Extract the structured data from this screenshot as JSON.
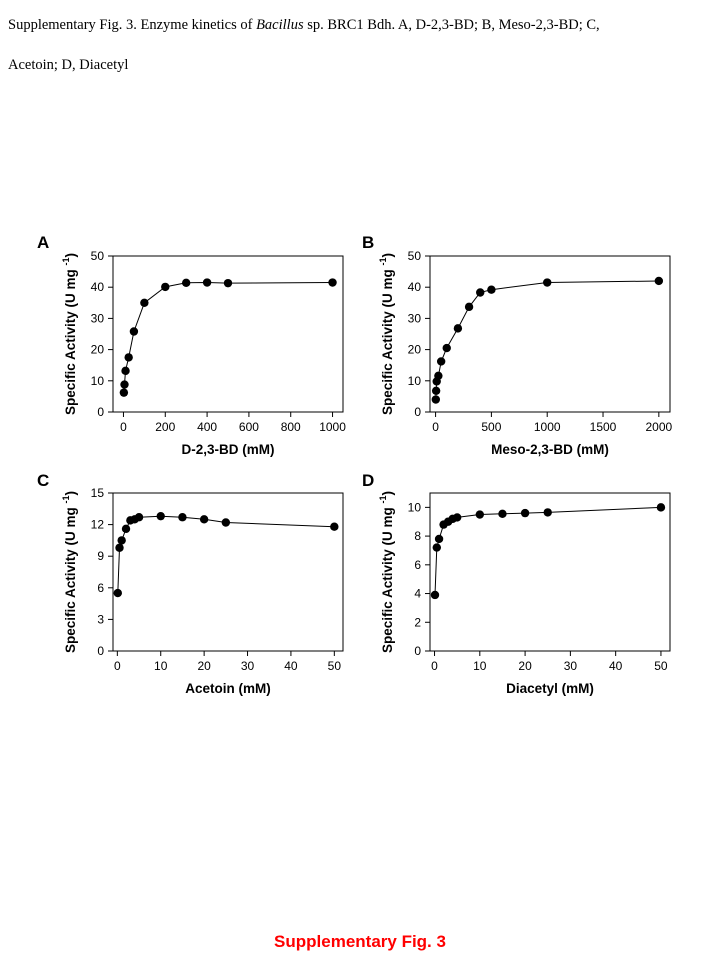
{
  "caption": {
    "line1_prefix": "Supplementary Fig. 3. Enzyme kinetics of ",
    "line1_italic": "Bacillus",
    "line1_suffix": " sp. BRC1 Bdh. A, D-2,3-BD; B, Meso-2,3-BD; C,",
    "line2": "Acetoin; D, Diacetyl"
  },
  "footer": {
    "title": "Supplementary Fig. 3",
    "color": "#ff0000"
  },
  "chart_data": [
    {
      "panel": "A",
      "type": "line",
      "xlabel": "D-2,3-BD (mM)",
      "ylabel": "Specific Activity (U mg-1)",
      "xlim": [
        -50,
        1050
      ],
      "ylim": [
        0,
        50
      ],
      "xticks": [
        0,
        200,
        400,
        600,
        800,
        1000
      ],
      "yticks": [
        0,
        10,
        20,
        30,
        40,
        50
      ],
      "series": [
        {
          "x": [
            2,
            5,
            10,
            25,
            50,
            100,
            200,
            300,
            400,
            500,
            1000
          ],
          "y": [
            6.2,
            8.8,
            13.2,
            17.5,
            25.8,
            35.0,
            40.1,
            41.4,
            41.5,
            41.3,
            41.5
          ]
        }
      ]
    },
    {
      "panel": "B",
      "type": "line",
      "xlabel": "Meso-2,3-BD (mM)",
      "ylabel": "Specific Activity (U mg-1)",
      "xlim": [
        -50,
        2100
      ],
      "ylim": [
        0,
        50
      ],
      "xticks": [
        0,
        500,
        1000,
        1500,
        2000
      ],
      "yticks": [
        0,
        10,
        20,
        30,
        40,
        50
      ],
      "series": [
        {
          "x": [
            2,
            5,
            10,
            25,
            50,
            100,
            200,
            300,
            400,
            500,
            1000,
            2000
          ],
          "y": [
            4.0,
            6.8,
            9.8,
            11.6,
            16.2,
            20.5,
            26.8,
            33.7,
            38.3,
            39.2,
            41.5,
            42.0
          ]
        }
      ]
    },
    {
      "panel": "C",
      "type": "line",
      "xlabel": "Acetoin (mM)",
      "ylabel": "Specific Activity (U mg-1)",
      "xlim": [
        -1,
        52
      ],
      "ylim": [
        0,
        15
      ],
      "xticks": [
        0,
        10,
        20,
        30,
        40,
        50
      ],
      "yticks": [
        0,
        3,
        6,
        9,
        12,
        15
      ],
      "series": [
        {
          "x": [
            0.1,
            0.5,
            1,
            2,
            3,
            4,
            5,
            10,
            15,
            20,
            25,
            50
          ],
          "y": [
            5.5,
            9.8,
            10.5,
            11.6,
            12.4,
            12.5,
            12.7,
            12.8,
            12.7,
            12.5,
            12.2,
            11.8
          ]
        }
      ]
    },
    {
      "panel": "D",
      "type": "line",
      "xlabel": "Diacetyl (mM)",
      "ylabel": "Specific Activity (U mg-1)",
      "xlim": [
        -1,
        52
      ],
      "ylim": [
        0,
        11
      ],
      "xticks": [
        0,
        10,
        20,
        30,
        40,
        50
      ],
      "yticks": [
        0,
        2,
        4,
        6,
        8,
        10
      ],
      "series": [
        {
          "x": [
            0.1,
            0.5,
            1,
            2,
            3,
            4,
            5,
            10,
            15,
            20,
            25,
            50
          ],
          "y": [
            3.9,
            7.2,
            7.8,
            8.8,
            9.0,
            9.2,
            9.3,
            9.5,
            9.55,
            9.6,
            9.65,
            10.0
          ]
        }
      ]
    }
  ]
}
